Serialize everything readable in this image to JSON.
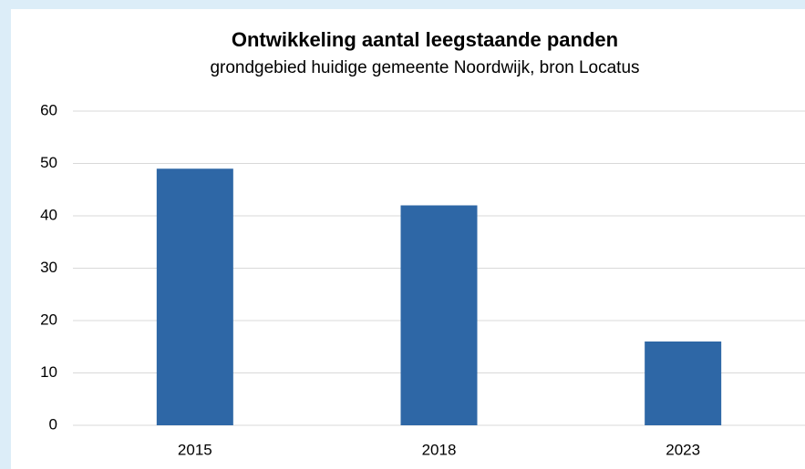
{
  "chart_data": {
    "type": "bar",
    "title": "Ontwikkeling aantal leegstaande panden",
    "subtitle": "grondgebied huidige gemeente Noordwijk, bron Locatus",
    "categories": [
      "2015",
      "2018",
      "2023"
    ],
    "values": [
      49,
      42,
      16
    ],
    "color": "#2e67a6",
    "ylim": [
      0,
      60
    ],
    "yticks": [
      0,
      10,
      20,
      30,
      40,
      50,
      60
    ],
    "grid": true
  }
}
